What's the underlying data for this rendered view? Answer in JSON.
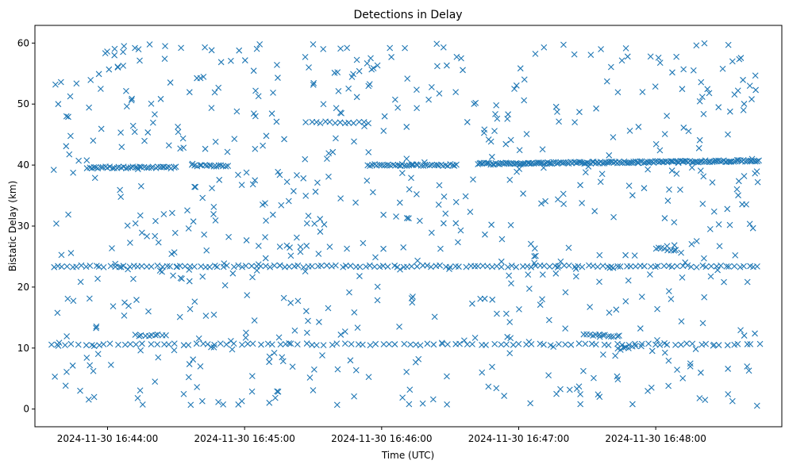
{
  "chart_data": {
    "type": "scatter",
    "title": "Detections in Delay",
    "xlabel": "Time (UTC)",
    "ylabel": "Bistatic Delay (km)",
    "marker": "x",
    "color": "#1f77b4",
    "x_unit": "minutes after 2024-11-30 16:44:00 UTC",
    "xlim": [
      -0.53,
      4.92
    ],
    "ylim": [
      -2.9,
      62.9
    ],
    "x_ticks": [
      {
        "value": 0,
        "label": "2024-11-30 16:44:00"
      },
      {
        "value": 1,
        "label": "2024-11-30 16:45:00"
      },
      {
        "value": 2,
        "label": "2024-11-30 16:46:00"
      },
      {
        "value": 3,
        "label": "2024-11-30 16:47:00"
      },
      {
        "value": 4,
        "label": "2024-11-30 16:48:00"
      }
    ],
    "y_ticks": [
      {
        "value": 0,
        "label": "0"
      },
      {
        "value": 10,
        "label": "10"
      },
      {
        "value": 20,
        "label": "20"
      },
      {
        "value": 30,
        "label": "30"
      },
      {
        "value": 40,
        "label": "40"
      },
      {
        "value": 50,
        "label": "50"
      },
      {
        "value": 60,
        "label": "60"
      }
    ],
    "grid": false,
    "legend": "none",
    "tracks": [
      {
        "name": "track-40km-early",
        "x_start": -0.15,
        "x_end": 0.5,
        "y_start": 39.6,
        "y_end": 39.6,
        "count": 40
      },
      {
        "name": "track-40km-mid",
        "x_start": 0.62,
        "x_end": 0.88,
        "y_start": 39.9,
        "y_end": 39.9,
        "count": 16
      },
      {
        "name": "track-47km",
        "x_start": 1.45,
        "x_end": 1.9,
        "y_start": 47.0,
        "y_end": 47.0,
        "count": 14
      },
      {
        "name": "track-40km-2",
        "x_start": 1.9,
        "x_end": 2.55,
        "y_start": 40.0,
        "y_end": 40.0,
        "count": 40
      },
      {
        "name": "track-40km-long",
        "x_start": 2.7,
        "x_end": 4.75,
        "y_start": 40.2,
        "y_end": 40.7,
        "count": 170
      },
      {
        "name": "track-23km",
        "x_start": -0.4,
        "x_end": 4.75,
        "y_start": 23.4,
        "y_end": 23.4,
        "count": 150
      },
      {
        "name": "track-10km",
        "x_start": -0.4,
        "x_end": 4.75,
        "y_start": 10.6,
        "y_end": 10.6,
        "count": 110
      },
      {
        "name": "track-12km-a",
        "x_start": 0.2,
        "x_end": 0.42,
        "y_start": 12.1,
        "y_end": 12.1,
        "count": 10
      },
      {
        "name": "track-12km-b",
        "x_start": 3.48,
        "x_end": 3.72,
        "y_start": 12.3,
        "y_end": 11.9,
        "count": 12
      },
      {
        "name": "track-26km",
        "x_start": 4.0,
        "x_end": 4.15,
        "y_start": 26.4,
        "y_end": 26.0,
        "count": 8
      },
      {
        "name": "track-10km-dip",
        "x_start": 3.72,
        "x_end": 3.85,
        "y_start": 9.8,
        "y_end": 10.2,
        "count": 7
      }
    ],
    "scatter_points": {
      "count": 650,
      "x_range": [
        -0.4,
        4.75
      ],
      "y_range": [
        0.5,
        60.0
      ],
      "distribution": "random"
    },
    "highlight_points": [
      {
        "x": -0.38,
        "y": 53.2
      },
      {
        "x": -0.34,
        "y": 53.6
      },
      {
        "x": -0.36,
        "y": 50.0
      },
      {
        "x": -0.3,
        "y": 48.0
      },
      {
        "x": -0.05,
        "y": 52.5
      },
      {
        "x": 0.05,
        "y": 58.0
      },
      {
        "x": 0.12,
        "y": 59.5
      },
      {
        "x": 0.2,
        "y": 59.2
      },
      {
        "x": 0.42,
        "y": 59.5
      },
      {
        "x": 1.11,
        "y": 59.8
      },
      {
        "x": 1.5,
        "y": 59.8
      },
      {
        "x": 1.7,
        "y": 59.1
      },
      {
        "x": 2.06,
        "y": 59.2
      },
      {
        "x": 2.58,
        "y": 57.5
      },
      {
        "x": 3.6,
        "y": 59.0
      },
      {
        "x": 4.53,
        "y": 59.7
      },
      {
        "x": 4.56,
        "y": 57.0
      },
      {
        "x": 4.02,
        "y": 57.6
      },
      {
        "x": -0.2,
        "y": 3.0
      },
      {
        "x": 0.22,
        "y": 1.8
      },
      {
        "x": 2.3,
        "y": 0.9
      },
      {
        "x": 3.45,
        "y": 0.8
      },
      {
        "x": 4.36,
        "y": 1.5
      },
      {
        "x": 4.56,
        "y": 1.3
      },
      {
        "x": 2.2,
        "y": 0.8
      },
      {
        "x": 0.98,
        "y": 1.3
      },
      {
        "x": 4.68,
        "y": 6.3
      },
      {
        "x": 4.7,
        "y": 50.8
      },
      {
        "x": 4.64,
        "y": 49.0
      },
      {
        "x": 4.6,
        "y": 52.2
      }
    ]
  }
}
